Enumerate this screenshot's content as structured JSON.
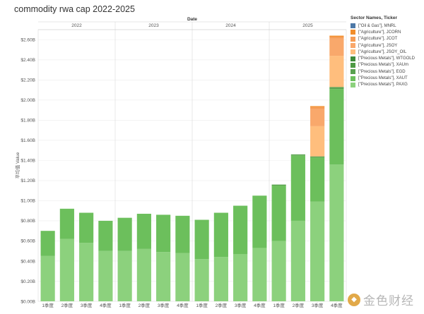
{
  "title": "commodity rwa cap 2022-2025",
  "chart_data": {
    "type": "bar",
    "stacked": true,
    "column_header": "Date",
    "years": [
      "2022",
      "2023",
      "2024",
      "2025"
    ],
    "categories": [
      "1季度",
      "2季度",
      "3季度",
      "4季度",
      "1季度",
      "2季度",
      "3季度",
      "4季度",
      "1季度",
      "2季度",
      "3季度",
      "4季度",
      "1季度",
      "2季度",
      "3季度",
      "4季度"
    ],
    "category_year": [
      "2022",
      "2022",
      "2022",
      "2022",
      "2023",
      "2023",
      "2023",
      "2023",
      "2024",
      "2024",
      "2024",
      "2024",
      "2025",
      "2025",
      "2025",
      "2025"
    ],
    "ylabel": "平均值 Value",
    "ylim": [
      0,
      2.7
    ],
    "yticks": [
      0,
      0.2,
      0.4,
      0.6,
      0.8,
      1.0,
      1.2,
      1.4,
      1.6,
      1.8,
      2.0,
      2.2,
      2.4,
      2.6
    ],
    "ytick_labels": [
      "$0.00B",
      "$0.20B",
      "$0.40B",
      "$0.60B",
      "$0.80B",
      "$1.00B",
      "$1.20B",
      "$1.40B",
      "$1.60B",
      "$1.80B",
      "$2.00B",
      "$2.20B",
      "$2.40B",
      "$2.60B"
    ],
    "grid": "horizontal",
    "legend_position": "right",
    "legend_title": "Sector Names, Ticker",
    "series": [
      {
        "name": "[\"Precious Metals\"], PAXG",
        "color": "#8cd17d",
        "values": [
          0.45,
          0.62,
          0.58,
          0.5,
          0.5,
          0.52,
          0.49,
          0.48,
          0.42,
          0.44,
          0.47,
          0.53,
          0.6,
          0.8,
          0.99,
          1.36
        ]
      },
      {
        "name": "[\"Precious Metals\"], XAUT",
        "color": "#6cbf5c",
        "values": [
          0.25,
          0.3,
          0.3,
          0.3,
          0.33,
          0.35,
          0.37,
          0.37,
          0.39,
          0.44,
          0.48,
          0.52,
          0.55,
          0.65,
          0.44,
          0.75
        ]
      },
      {
        "name": "[\"Precious Metals\"], EGD",
        "color": "#59a14f",
        "values": [
          0.0,
          0.0,
          0.0,
          0.0,
          0.0,
          0.0,
          0.0,
          0.0,
          0.0,
          0.0,
          0.0,
          0.0,
          0.01,
          0.01,
          0.01,
          0.01
        ]
      },
      {
        "name": "[\"Precious Metals\"], XAUm",
        "color": "#4e9a44",
        "values": [
          0.0,
          0.0,
          0.0,
          0.0,
          0.0,
          0.0,
          0.0,
          0.0,
          0.0,
          0.0,
          0.0,
          0.0,
          0.0,
          0.0,
          0.0,
          0.01
        ]
      },
      {
        "name": "[\"Precious Metals\"], WTGOLD",
        "color": "#3e8a3a",
        "values": [
          0.0,
          0.0,
          0.0,
          0.0,
          0.0,
          0.0,
          0.0,
          0.0,
          0.0,
          0.0,
          0.0,
          0.0,
          0.0,
          0.0,
          0.0,
          0.0
        ]
      },
      {
        "name": "[\"Agriculture\"], JSOY_OIL",
        "color": "#ffbe7d",
        "values": [
          0.0,
          0.0,
          0.0,
          0.0,
          0.0,
          0.0,
          0.0,
          0.0,
          0.0,
          0.0,
          0.0,
          0.0,
          0.0,
          0.0,
          0.3,
          0.31
        ]
      },
      {
        "name": "[\"Agriculture\"], JSOY",
        "color": "#f9a86b",
        "values": [
          0.0,
          0.0,
          0.0,
          0.0,
          0.0,
          0.0,
          0.0,
          0.0,
          0.0,
          0.0,
          0.0,
          0.0,
          0.0,
          0.0,
          0.17,
          0.17
        ]
      },
      {
        "name": "[\"Agriculture\"], JCOT",
        "color": "#f59c55",
        "values": [
          0.0,
          0.0,
          0.0,
          0.0,
          0.0,
          0.0,
          0.0,
          0.0,
          0.0,
          0.0,
          0.0,
          0.0,
          0.0,
          0.0,
          0.02,
          0.02
        ]
      },
      {
        "name": "[\"Agriculture\"], JCORN",
        "color": "#f28e2b",
        "values": [
          0.0,
          0.0,
          0.0,
          0.0,
          0.0,
          0.0,
          0.0,
          0.0,
          0.0,
          0.0,
          0.0,
          0.0,
          0.0,
          0.0,
          0.01,
          0.01
        ]
      },
      {
        "name": "[\"Oil & Gas\"], MNRL",
        "color": "#4e79a7",
        "values": [
          0.0,
          0.0,
          0.0,
          0.0,
          0.0,
          0.0,
          0.0,
          0.0,
          0.0,
          0.0,
          0.0,
          0.0,
          0.0,
          0.0,
          0.0,
          0.0
        ]
      }
    ]
  },
  "legend_items": [
    {
      "label": "[\"Oil & Gas\"], MNRL",
      "color": "#4e79a7"
    },
    {
      "label": "[\"Agriculture\"], JCORN",
      "color": "#f28e2b"
    },
    {
      "label": "[\"Agriculture\"], JCOT",
      "color": "#f59c55"
    },
    {
      "label": "[\"Agriculture\"], JSOY",
      "color": "#f9a86b"
    },
    {
      "label": "[\"Agriculture\"], JSOY_OIL",
      "color": "#ffbe7d"
    },
    {
      "label": "[\"Precious Metals\"], WTGOLD",
      "color": "#3e8a3a"
    },
    {
      "label": "[\"Precious Metals\"], XAUm",
      "color": "#4e9a44"
    },
    {
      "label": "[\"Precious Metals\"], EGD",
      "color": "#59a14f"
    },
    {
      "label": "[\"Precious Metals\"], XAUT",
      "color": "#6cbf5c"
    },
    {
      "label": "[\"Precious Metals\"], PAXG",
      "color": "#8cd17d"
    }
  ],
  "watermark": {
    "logo_glyph": "◆",
    "text": "金色财经"
  }
}
